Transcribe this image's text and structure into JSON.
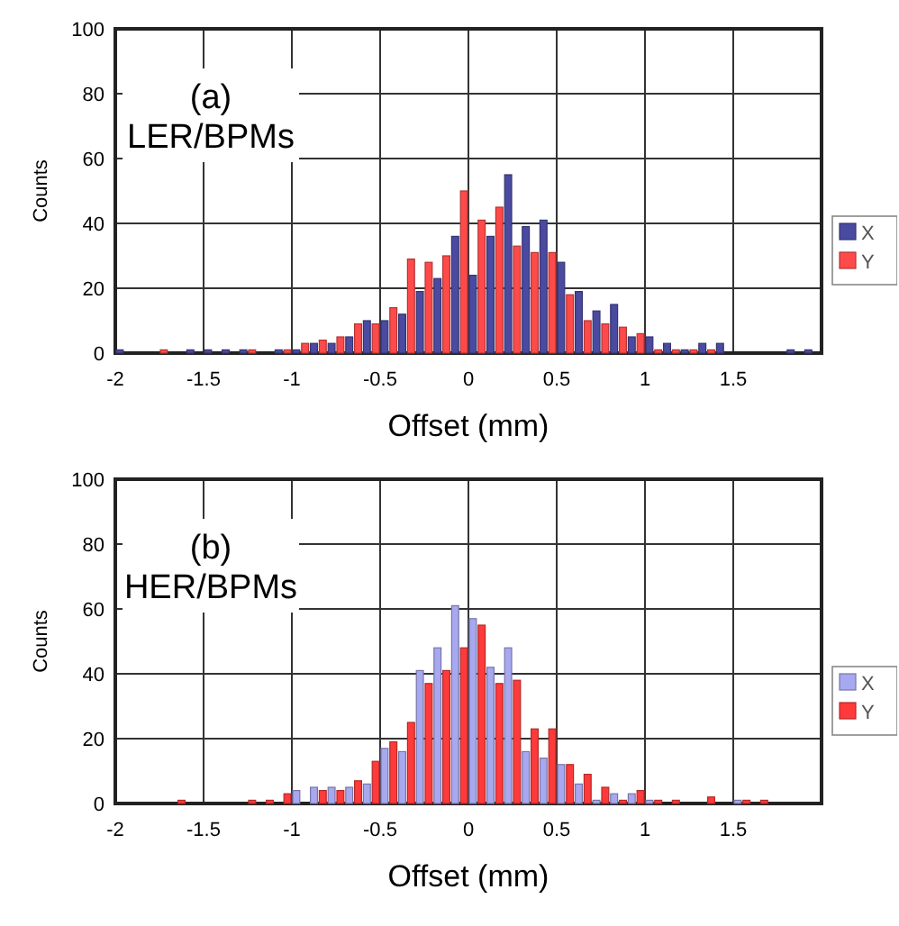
{
  "chart_data": [
    {
      "type": "histogram",
      "xlabel": "Offset (mm)",
      "ylabel": "Counts",
      "annotations": [
        "(a)",
        "LER/BPMs"
      ],
      "bins": [
        -2,
        -1.9,
        -1.8,
        -1.7,
        -1.6,
        -1.5,
        -1.4,
        -1.3,
        -1.2,
        -1.1,
        -1,
        -0.9,
        -0.8,
        -0.7,
        -0.6,
        -0.5,
        -0.4,
        -0.3,
        -0.2,
        -0.1,
        0,
        0.1,
        0.2,
        0.3,
        0.4,
        0.5,
        0.6,
        0.7,
        0.8,
        0.9,
        1,
        1.1,
        1.2,
        1.3,
        1.4,
        1.5,
        1.6,
        1.7,
        1.8,
        1.9,
        2
      ],
      "series": [
        {
          "name": "X",
          "color": "#4a4aa0",
          "values": [
            1,
            0,
            0,
            0,
            1,
            1,
            1,
            1,
            0,
            1,
            1,
            3,
            3,
            5,
            10,
            10,
            12,
            19,
            23,
            36,
            24,
            36,
            55,
            39,
            41,
            28,
            19,
            13,
            15,
            5,
            5,
            3,
            1,
            3,
            3,
            0,
            0,
            0,
            1,
            1
          ]
        },
        {
          "name": "Y",
          "color": "#ff4a4a",
          "values": [
            0,
            0,
            1,
            0,
            0,
            0,
            0,
            1,
            0,
            1,
            3,
            4,
            5,
            9,
            9,
            14,
            29,
            28,
            30,
            50,
            41,
            45,
            33,
            31,
            31,
            18,
            10,
            9,
            8,
            6,
            1,
            1,
            1,
            1,
            0,
            0,
            0,
            0,
            0,
            0
          ]
        }
      ],
      "xlim": [
        -2,
        2
      ],
      "xticks": [
        -2,
        -1.5,
        -1,
        -0.5,
        0,
        0.5,
        1,
        1.5
      ],
      "ylim": [
        0,
        100
      ],
      "yticks": [
        0,
        20,
        40,
        60,
        80,
        100
      ],
      "grid": true,
      "legend": "right"
    },
    {
      "type": "histogram",
      "xlabel": "Offset (mm)",
      "ylabel": "Counts",
      "annotations": [
        "(b)",
        "HER/BPMs"
      ],
      "bins": [
        -2,
        -1.9,
        -1.8,
        -1.7,
        -1.6,
        -1.5,
        -1.4,
        -1.3,
        -1.2,
        -1.1,
        -1,
        -0.9,
        -0.8,
        -0.7,
        -0.6,
        -0.5,
        -0.4,
        -0.3,
        -0.2,
        -0.1,
        0,
        0.1,
        0.2,
        0.3,
        0.4,
        0.5,
        0.6,
        0.7,
        0.8,
        0.9,
        1,
        1.1,
        1.2,
        1.3,
        1.4,
        1.5,
        1.6,
        1.7,
        1.8,
        1.9,
        2
      ],
      "series": [
        {
          "name": "X",
          "color": "#a8a8f0",
          "values": [
            0,
            0,
            0,
            0,
            0,
            0,
            0,
            0,
            0,
            0,
            4,
            5,
            5,
            5,
            6,
            17,
            16,
            41,
            48,
            61,
            57,
            42,
            48,
            16,
            14,
            12,
            6,
            1,
            3,
            3,
            1,
            0,
            0,
            0,
            0,
            1,
            0,
            0,
            0,
            0
          ]
        },
        {
          "name": "Y",
          "color": "#ff3a3a",
          "values": [
            0,
            0,
            0,
            1,
            0,
            0,
            0,
            1,
            1,
            3,
            0,
            4,
            4,
            7,
            13,
            19,
            25,
            37,
            41,
            48,
            55,
            37,
            38,
            23,
            23,
            12,
            9,
            5,
            1,
            4,
            1,
            1,
            0,
            2,
            0,
            1,
            1,
            0,
            0,
            0
          ]
        }
      ],
      "xlim": [
        -2,
        2
      ],
      "xticks": [
        -2,
        -1.5,
        -1,
        -0.5,
        0,
        0.5,
        1,
        1.5
      ],
      "ylim": [
        0,
        100
      ],
      "yticks": [
        0,
        20,
        40,
        60,
        80,
        100
      ],
      "grid": true,
      "legend": "right"
    }
  ]
}
